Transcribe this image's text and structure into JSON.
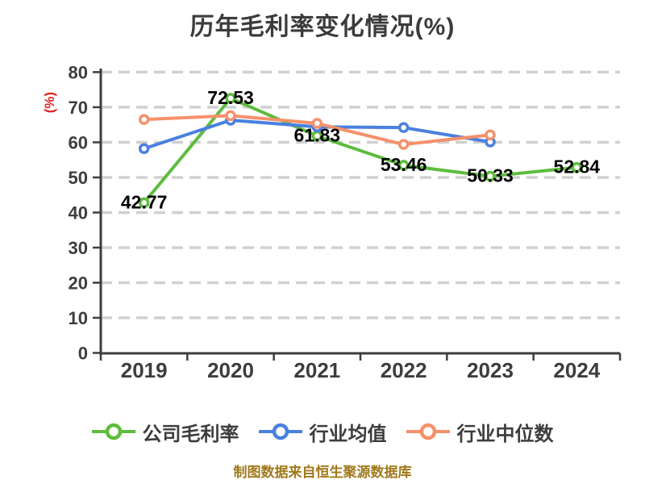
{
  "colors": {
    "background": "#ffffff",
    "title_text": "#3b3b3b",
    "axis_text": "#3d3d3d",
    "axis_line": "#3d3d3d",
    "gridline": "#d0d0d0",
    "data_label": "#000000",
    "y_unit_red": "#e02121",
    "caption_gold": "#a0791b"
  },
  "chart_data": {
    "type": "line",
    "title": "历年毛利率变化情况(%)",
    "ylabel": "(%)",
    "xlabel": "",
    "categories": [
      "2019",
      "2020",
      "2021",
      "2022",
      "2023",
      "2024"
    ],
    "ylim": [
      0,
      80
    ],
    "ytick_step": 10,
    "grid": "horizontal-dashed",
    "legend_position": "bottom",
    "series": [
      {
        "key": "company-gross-margin",
        "name": "公司毛利率",
        "color": "#5ebc3e",
        "values": [
          42.77,
          72.53,
          61.83,
          53.46,
          50.33,
          52.84
        ],
        "labels": [
          "42.77",
          "72.53",
          "61.83",
          "53.46",
          "50.33",
          "52.84"
        ]
      },
      {
        "key": "industry-mean",
        "name": "行业均值",
        "color": "#4a80e0",
        "values": [
          58.2,
          66.3,
          64.4,
          64.2,
          60.1,
          null
        ],
        "labels": null
      },
      {
        "key": "industry-median",
        "name": "行业中位数",
        "color": "#f5916b",
        "values": [
          66.5,
          67.6,
          65.4,
          59.4,
          62.1,
          null
        ],
        "labels": null
      }
    ],
    "source_caption": "制图数据来自恒生聚源数据库"
  }
}
